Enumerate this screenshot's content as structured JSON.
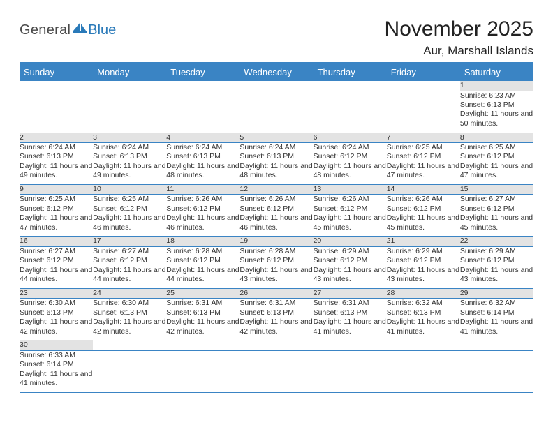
{
  "brand": {
    "general": "General",
    "blue": "Blue",
    "icon_color": "#2a7ab9"
  },
  "header": {
    "month_title": "November 2025",
    "location": "Aur, Marshall Islands"
  },
  "colors": {
    "header_bg": "#3a84c4",
    "header_text": "#ffffff",
    "daynum_bg": "#e3e3e3",
    "rule": "#3a84c4",
    "body_text": "#333333"
  },
  "weekdays": [
    "Sunday",
    "Monday",
    "Tuesday",
    "Wednesday",
    "Thursday",
    "Friday",
    "Saturday"
  ],
  "labels": {
    "sunrise_prefix": "Sunrise: ",
    "sunset_prefix": "Sunset: ",
    "daylight_prefix": "Daylight: ",
    "daylight_join": " and ",
    "daylight_unit_h": " hours",
    "daylight_unit_m": " minutes."
  },
  "weeks": [
    [
      null,
      null,
      null,
      null,
      null,
      null,
      {
        "d": "1",
        "sr": "6:23 AM",
        "ss": "6:13 PM",
        "dl_h": "11",
        "dl_m": "50"
      }
    ],
    [
      {
        "d": "2",
        "sr": "6:24 AM",
        "ss": "6:13 PM",
        "dl_h": "11",
        "dl_m": "49"
      },
      {
        "d": "3",
        "sr": "6:24 AM",
        "ss": "6:13 PM",
        "dl_h": "11",
        "dl_m": "49"
      },
      {
        "d": "4",
        "sr": "6:24 AM",
        "ss": "6:13 PM",
        "dl_h": "11",
        "dl_m": "48"
      },
      {
        "d": "5",
        "sr": "6:24 AM",
        "ss": "6:13 PM",
        "dl_h": "11",
        "dl_m": "48"
      },
      {
        "d": "6",
        "sr": "6:24 AM",
        "ss": "6:12 PM",
        "dl_h": "11",
        "dl_m": "48"
      },
      {
        "d": "7",
        "sr": "6:25 AM",
        "ss": "6:12 PM",
        "dl_h": "11",
        "dl_m": "47"
      },
      {
        "d": "8",
        "sr": "6:25 AM",
        "ss": "6:12 PM",
        "dl_h": "11",
        "dl_m": "47"
      }
    ],
    [
      {
        "d": "9",
        "sr": "6:25 AM",
        "ss": "6:12 PM",
        "dl_h": "11",
        "dl_m": "47"
      },
      {
        "d": "10",
        "sr": "6:25 AM",
        "ss": "6:12 PM",
        "dl_h": "11",
        "dl_m": "46"
      },
      {
        "d": "11",
        "sr": "6:26 AM",
        "ss": "6:12 PM",
        "dl_h": "11",
        "dl_m": "46"
      },
      {
        "d": "12",
        "sr": "6:26 AM",
        "ss": "6:12 PM",
        "dl_h": "11",
        "dl_m": "46"
      },
      {
        "d": "13",
        "sr": "6:26 AM",
        "ss": "6:12 PM",
        "dl_h": "11",
        "dl_m": "45"
      },
      {
        "d": "14",
        "sr": "6:26 AM",
        "ss": "6:12 PM",
        "dl_h": "11",
        "dl_m": "45"
      },
      {
        "d": "15",
        "sr": "6:27 AM",
        "ss": "6:12 PM",
        "dl_h": "11",
        "dl_m": "45"
      }
    ],
    [
      {
        "d": "16",
        "sr": "6:27 AM",
        "ss": "6:12 PM",
        "dl_h": "11",
        "dl_m": "44"
      },
      {
        "d": "17",
        "sr": "6:27 AM",
        "ss": "6:12 PM",
        "dl_h": "11",
        "dl_m": "44"
      },
      {
        "d": "18",
        "sr": "6:28 AM",
        "ss": "6:12 PM",
        "dl_h": "11",
        "dl_m": "44"
      },
      {
        "d": "19",
        "sr": "6:28 AM",
        "ss": "6:12 PM",
        "dl_h": "11",
        "dl_m": "43"
      },
      {
        "d": "20",
        "sr": "6:29 AM",
        "ss": "6:12 PM",
        "dl_h": "11",
        "dl_m": "43"
      },
      {
        "d": "21",
        "sr": "6:29 AM",
        "ss": "6:12 PM",
        "dl_h": "11",
        "dl_m": "43"
      },
      {
        "d": "22",
        "sr": "6:29 AM",
        "ss": "6:12 PM",
        "dl_h": "11",
        "dl_m": "43"
      }
    ],
    [
      {
        "d": "23",
        "sr": "6:30 AM",
        "ss": "6:13 PM",
        "dl_h": "11",
        "dl_m": "42"
      },
      {
        "d": "24",
        "sr": "6:30 AM",
        "ss": "6:13 PM",
        "dl_h": "11",
        "dl_m": "42"
      },
      {
        "d": "25",
        "sr": "6:31 AM",
        "ss": "6:13 PM",
        "dl_h": "11",
        "dl_m": "42"
      },
      {
        "d": "26",
        "sr": "6:31 AM",
        "ss": "6:13 PM",
        "dl_h": "11",
        "dl_m": "42"
      },
      {
        "d": "27",
        "sr": "6:31 AM",
        "ss": "6:13 PM",
        "dl_h": "11",
        "dl_m": "41"
      },
      {
        "d": "28",
        "sr": "6:32 AM",
        "ss": "6:13 PM",
        "dl_h": "11",
        "dl_m": "41"
      },
      {
        "d": "29",
        "sr": "6:32 AM",
        "ss": "6:14 PM",
        "dl_h": "11",
        "dl_m": "41"
      }
    ],
    [
      {
        "d": "30",
        "sr": "6:33 AM",
        "ss": "6:14 PM",
        "dl_h": "11",
        "dl_m": "41"
      },
      null,
      null,
      null,
      null,
      null,
      null
    ]
  ]
}
